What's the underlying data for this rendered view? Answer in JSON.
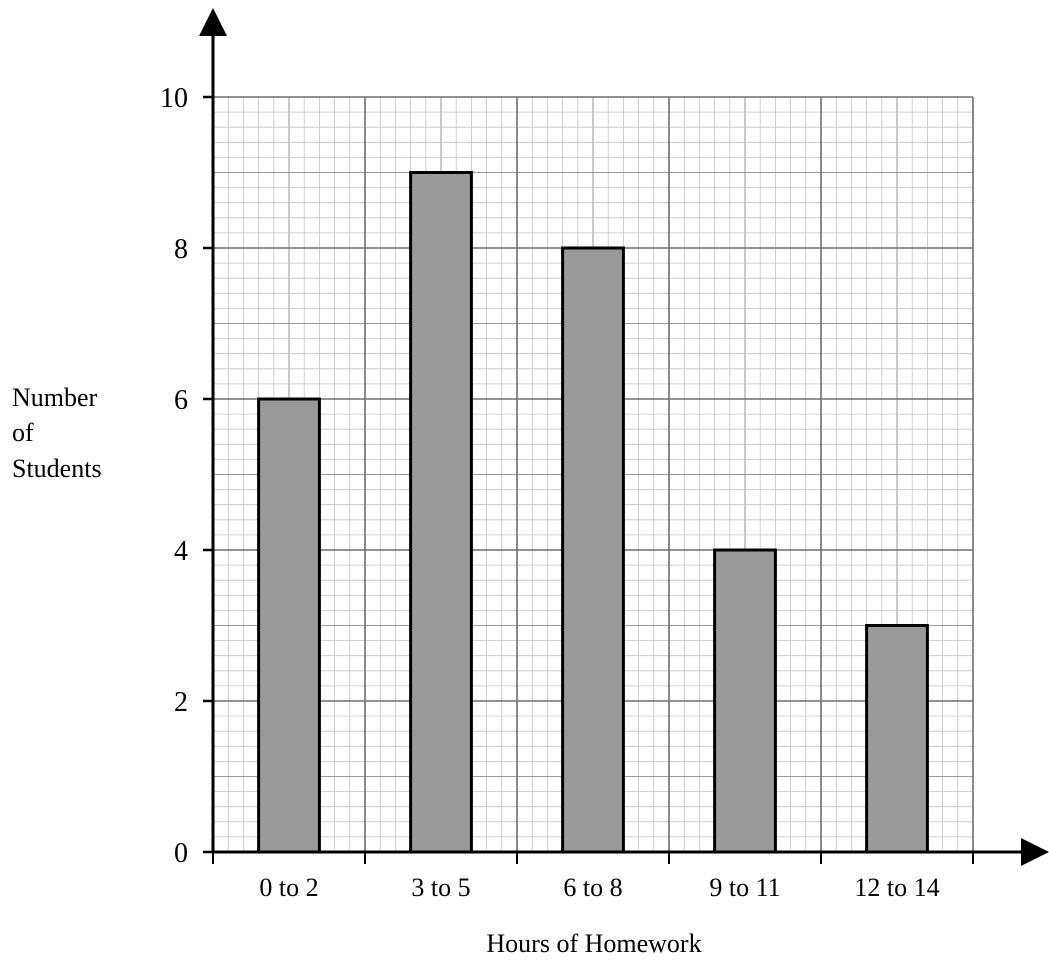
{
  "chart_data": {
    "type": "bar",
    "title": "",
    "xlabel": "Hours of Homework",
    "ylabel": [
      "Number",
      "of",
      "Students"
    ],
    "categories": [
      "0 to 2",
      "3 to 5",
      "6 to 8",
      "9 to 11",
      "12 to 14"
    ],
    "values": [
      6,
      9,
      8,
      4,
      3
    ],
    "ylim": [
      0,
      10
    ],
    "yticks": [
      "0",
      "2",
      "4",
      "6",
      "8",
      "10"
    ],
    "grid": true,
    "bar_color": "#999999",
    "bar_edge_color": "#000000"
  }
}
